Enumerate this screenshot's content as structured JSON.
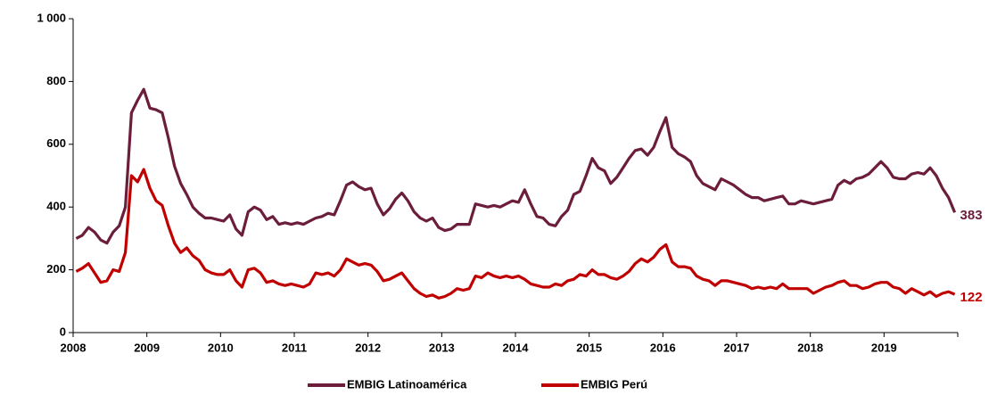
{
  "chart_data": {
    "type": "line",
    "categories": [
      "2008",
      null,
      null,
      null,
      null,
      null,
      null,
      null,
      null,
      null,
      null,
      null,
      "2009",
      null,
      null,
      null,
      null,
      null,
      null,
      null,
      null,
      null,
      null,
      null,
      "2010",
      null,
      null,
      null,
      null,
      null,
      null,
      null,
      null,
      null,
      null,
      null,
      "2011",
      null,
      null,
      null,
      null,
      null,
      null,
      null,
      null,
      null,
      null,
      null,
      "2012",
      null,
      null,
      null,
      null,
      null,
      null,
      null,
      null,
      null,
      null,
      null,
      "2013",
      null,
      null,
      null,
      null,
      null,
      null,
      null,
      null,
      null,
      null,
      null,
      "2014",
      null,
      null,
      null,
      null,
      null,
      null,
      null,
      null,
      null,
      null,
      null,
      "2015",
      null,
      null,
      null,
      null,
      null,
      null,
      null,
      null,
      null,
      null,
      null,
      "2016",
      null,
      null,
      null,
      null,
      null,
      null,
      null,
      null,
      null,
      null,
      null,
      "2017",
      null,
      null,
      null,
      null,
      null,
      null,
      null,
      null,
      null,
      null,
      null,
      "2018",
      null,
      null,
      null,
      null,
      null,
      null,
      null,
      null,
      null,
      null,
      null,
      "2019",
      null,
      null,
      null,
      null,
      null,
      null,
      null,
      null,
      null,
      null,
      null
    ],
    "series": [
      {
        "name": "EMBIG Latinoamérica",
        "color": "#6b1d3b",
        "values": [
          300,
          310,
          335,
          320,
          295,
          285,
          320,
          340,
          400,
          700,
          740,
          775,
          715,
          710,
          700,
          620,
          530,
          475,
          440,
          400,
          380,
          365,
          365,
          360,
          355,
          375,
          330,
          310,
          385,
          400,
          390,
          360,
          370,
          345,
          350,
          345,
          350,
          345,
          355,
          365,
          370,
          380,
          375,
          420,
          470,
          480,
          465,
          455,
          460,
          410,
          375,
          395,
          425,
          445,
          420,
          385,
          365,
          355,
          365,
          335,
          325,
          330,
          345,
          345,
          345,
          410,
          405,
          400,
          405,
          400,
          410,
          420,
          415,
          455,
          410,
          370,
          365,
          345,
          340,
          370,
          390,
          440,
          450,
          500,
          555,
          525,
          515,
          475,
          495,
          525,
          555,
          580,
          585,
          565,
          590,
          640,
          685,
          590,
          570,
          560,
          545,
          500,
          475,
          465,
          455,
          490,
          480,
          470,
          455,
          440,
          430,
          430,
          420,
          425,
          430,
          435,
          410,
          410,
          420,
          415,
          410,
          415,
          420,
          425,
          470,
          485,
          475,
          490,
          495,
          505,
          525,
          545,
          525,
          495,
          490,
          490,
          505,
          510,
          505,
          525,
          500,
          460,
          430,
          383
        ]
      },
      {
        "name": "EMBIG Perú",
        "color": "#c00000",
        "values": [
          195,
          205,
          220,
          190,
          160,
          165,
          200,
          195,
          255,
          500,
          480,
          520,
          460,
          420,
          405,
          340,
          285,
          255,
          270,
          245,
          230,
          200,
          190,
          185,
          185,
          200,
          165,
          145,
          200,
          205,
          190,
          160,
          165,
          155,
          150,
          155,
          150,
          145,
          155,
          190,
          185,
          190,
          180,
          200,
          235,
          225,
          215,
          220,
          215,
          195,
          165,
          170,
          180,
          190,
          165,
          140,
          125,
          115,
          120,
          110,
          115,
          125,
          140,
          135,
          140,
          180,
          175,
          190,
          180,
          175,
          180,
          175,
          180,
          170,
          155,
          150,
          145,
          145,
          155,
          150,
          165,
          170,
          185,
          180,
          200,
          185,
          185,
          175,
          170,
          180,
          195,
          220,
          235,
          225,
          240,
          265,
          280,
          225,
          210,
          210,
          205,
          180,
          170,
          165,
          150,
          165,
          165,
          160,
          155,
          150,
          140,
          145,
          140,
          145,
          140,
          155,
          140,
          140,
          140,
          140,
          125,
          135,
          145,
          150,
          160,
          165,
          150,
          150,
          140,
          145,
          155,
          160,
          160,
          145,
          140,
          125,
          140,
          130,
          120,
          130,
          115,
          125,
          130,
          122
        ]
      }
    ],
    "ylim": [
      0,
      1000
    ],
    "yticks": [
      0,
      200,
      400,
      600,
      800,
      {
        "value": 1000,
        "label": "1 000"
      }
    ],
    "legend": "bottom"
  }
}
